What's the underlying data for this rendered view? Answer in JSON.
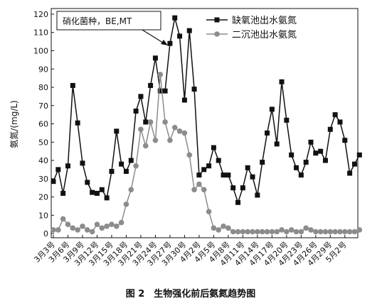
{
  "chart_data": {
    "type": "line",
    "title": "图 2　生物强化前后氨氮趋势图",
    "ylabel": "氨氮/(mg/L)",
    "annotation": "硝化菌种，BE,MT",
    "categories": [
      "3月3号",
      null,
      null,
      "3月6号",
      null,
      null,
      "3月9号",
      null,
      null,
      "3月12号",
      null,
      null,
      "3月15号",
      null,
      null,
      "3月18号",
      null,
      null,
      "3月21号",
      null,
      null,
      "3月24号",
      null,
      null,
      "3月27号",
      null,
      null,
      "3月30号",
      null,
      null,
      "4月2号",
      null,
      null,
      "4月5号",
      null,
      null,
      "4月8号",
      null,
      null,
      "4月11号",
      null,
      null,
      "4月14号",
      null,
      null,
      "4月17号",
      null,
      null,
      "4月20号",
      null,
      null,
      "4月23号",
      null,
      null,
      "4月26号",
      null,
      null,
      "4月29号",
      null,
      null,
      "5月2号",
      null,
      null,
      null
    ],
    "series": [
      {
        "name": "缺氧池出水氨氮",
        "color": "#111111",
        "marker": "square",
        "values": [
          28.5,
          35,
          22,
          37,
          81,
          60.5,
          38.5,
          28,
          22.5,
          22,
          24,
          19.5,
          34,
          56,
          38,
          34,
          40,
          67,
          75,
          61,
          81,
          96,
          78,
          78,
          104,
          118,
          108,
          73,
          111,
          79,
          32,
          35,
          37,
          47,
          40,
          32,
          32,
          25,
          17,
          25,
          36,
          31,
          21,
          39,
          55,
          68,
          49,
          83,
          62,
          43,
          36,
          32,
          39,
          50,
          44,
          45,
          40,
          57,
          65,
          61,
          51,
          33,
          38,
          43
        ]
      },
      {
        "name": "二沉池出水氨氮",
        "color": "#8c8c8c",
        "marker": "circle",
        "values": [
          2,
          2,
          8,
          5,
          3,
          2,
          4,
          2,
          1,
          5,
          3,
          4,
          5,
          4,
          6,
          16,
          24,
          37,
          57,
          48,
          61,
          51,
          87,
          61,
          51,
          58,
          56,
          55,
          43,
          24,
          27,
          24,
          12,
          3,
          2,
          4,
          3,
          1,
          1,
          1,
          1,
          1,
          1,
          1,
          1,
          1,
          1,
          2,
          1,
          2,
          1,
          1,
          3,
          2,
          1,
          1,
          1,
          1,
          1,
          1,
          1,
          1,
          1,
          2
        ]
      }
    ],
    "ylim": [
      -2.3,
      123.1
    ],
    "yticks": [
      0,
      10,
      20,
      30,
      40,
      50,
      60,
      70,
      80,
      90,
      100,
      110,
      120
    ],
    "legend": "upper right"
  }
}
